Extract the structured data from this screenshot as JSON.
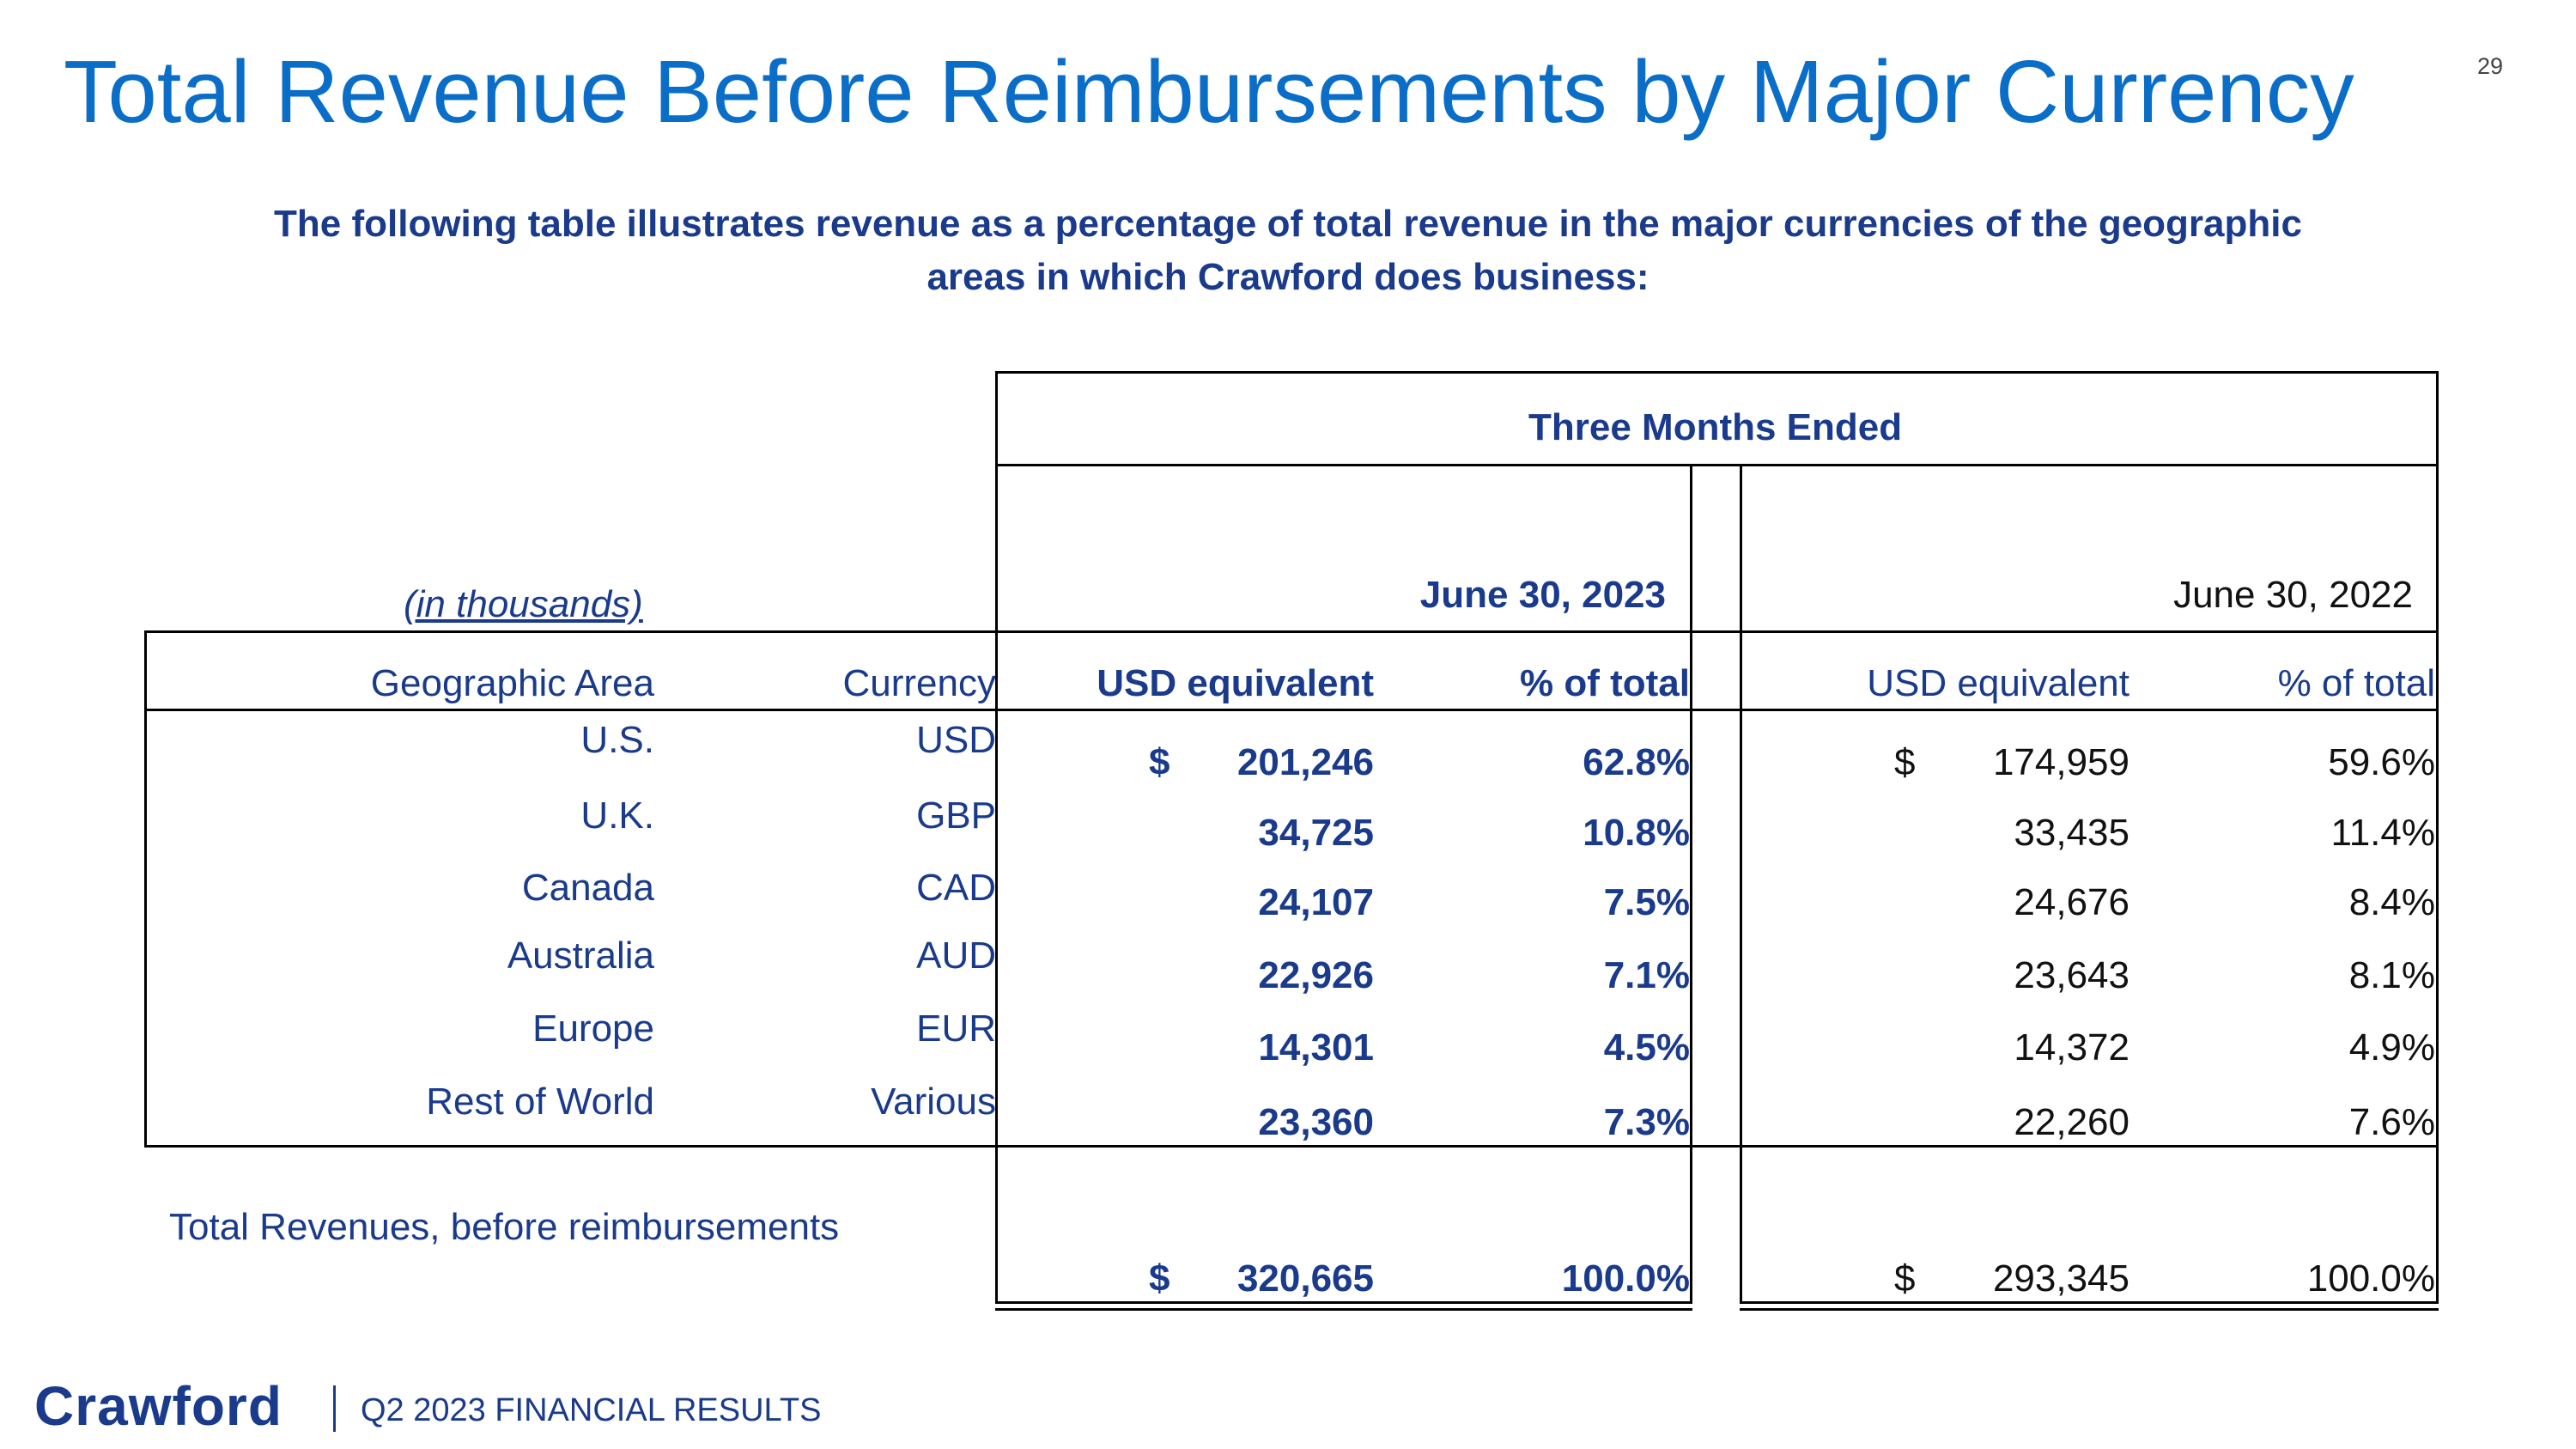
{
  "page": {
    "title": "Total Revenue Before Reimbursements by Major Currency",
    "page_number": "29",
    "subtitle": "The following table illustrates revenue as a percentage of total revenue in the major currencies of the geographic areas in which Crawford does business:"
  },
  "table": {
    "period_header": "Three Months Ended",
    "units_note": "(in thousands)",
    "period_2023": "June 30, 2023",
    "period_2022": "June 30, 2022",
    "headers": {
      "area": "Geographic Area",
      "currency": "Currency",
      "usd_2023": "USD equivalent",
      "pct_2023": "% of total",
      "usd_2022": "USD equivalent",
      "pct_2022": "% of total"
    },
    "dollar_sign": "$",
    "rows": [
      {
        "area": "U.S.",
        "currency": "USD",
        "usd_2023": "201,246",
        "pct_2023": "62.8%",
        "usd_2022": "174,959",
        "pct_2022": "59.6%"
      },
      {
        "area": "U.K.",
        "currency": "GBP",
        "usd_2023": "34,725",
        "pct_2023": "10.8%",
        "usd_2022": "33,435",
        "pct_2022": "11.4%"
      },
      {
        "area": "Canada",
        "currency": "CAD",
        "usd_2023": "24,107",
        "pct_2023": "7.5%",
        "usd_2022": "24,676",
        "pct_2022": "8.4%"
      },
      {
        "area": "Australia",
        "currency": "AUD",
        "usd_2023": "22,926",
        "pct_2023": "7.1%",
        "usd_2022": "23,643",
        "pct_2022": "8.1%"
      },
      {
        "area": "Europe",
        "currency": "EUR",
        "usd_2023": "14,301",
        "pct_2023": "4.5%",
        "usd_2022": "14,372",
        "pct_2022": "4.9%"
      },
      {
        "area": "Rest of World",
        "currency": "Various",
        "usd_2023": "23,360",
        "pct_2023": "7.3%",
        "usd_2022": "22,260",
        "pct_2022": "7.6%"
      }
    ],
    "total": {
      "label": "Total Revenues, before reimbursements",
      "usd_2023": "320,665",
      "pct_2023": "100.0%",
      "usd_2022": "293,345",
      "pct_2022": "100.0%"
    }
  },
  "footer": {
    "logo": "Crawford",
    "text": "Q2 2023 FINANCIAL RESULTS"
  }
}
